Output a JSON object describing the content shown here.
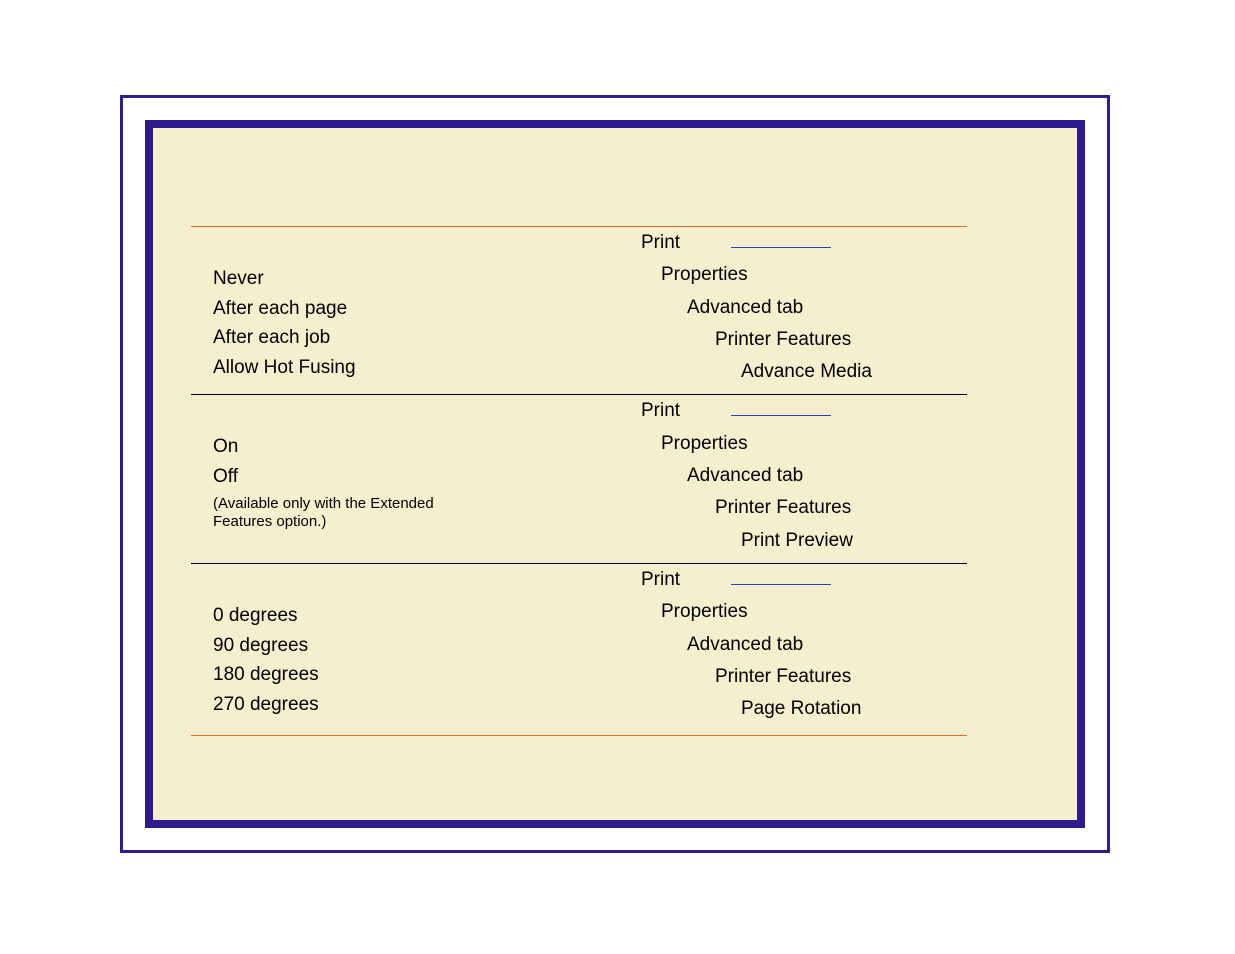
{
  "colors": {
    "frame": "#2e1b8f",
    "panel_bg": "#f5efce",
    "orange_rule": "#e96a2b",
    "black_rule": "#000000",
    "blue_underline": "#2040d0",
    "text": "#000000"
  },
  "rows": [
    {
      "top_rule": "orange",
      "options": [
        "Never",
        "After each page",
        "After each job",
        "Allow Hot Fusing"
      ],
      "note": null,
      "path": [
        "Print",
        "Properties",
        "Advanced tab",
        "Printer Features",
        "Advance Media"
      ]
    },
    {
      "top_rule": "black",
      "options": [
        "On",
        "Off"
      ],
      "note": "(Available only with the Extended Features option.)",
      "path": [
        "Print",
        "Properties",
        "Advanced tab",
        "Printer Features",
        "Print Preview"
      ]
    },
    {
      "top_rule": "black",
      "bottom_rule": "orange",
      "options": [
        "0 degrees",
        "90 degrees",
        "180 degrees",
        "270 degrees"
      ],
      "note": null,
      "path": [
        "Print",
        "Properties",
        "Advanced tab",
        "Printer Features",
        "Page Rotation"
      ]
    }
  ]
}
